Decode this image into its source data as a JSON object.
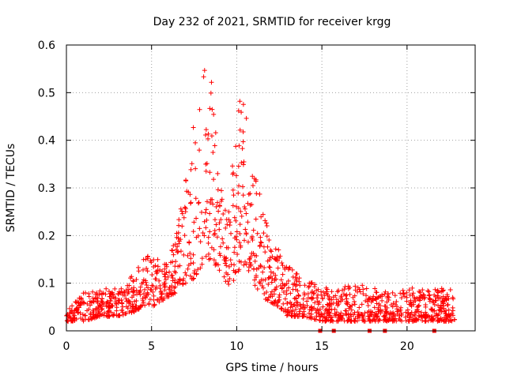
{
  "chart_data": {
    "type": "scatter",
    "title": "Day 232 of 2021, SRMTID for receiver krgg",
    "xlabel": "GPS time / hours",
    "ylabel": "SRMTID / TECUs",
    "xlim": [
      0,
      24
    ],
    "ylim": [
      0,
      0.6
    ],
    "xticks": [
      0,
      5,
      10,
      15,
      20
    ],
    "xtick_labels": [
      "0",
      "5",
      "10",
      "15",
      "20"
    ],
    "yticks": [
      0,
      0.1,
      0.2,
      0.3,
      0.4,
      0.5,
      0.6
    ],
    "ytick_labels": [
      "0",
      "0.1",
      "0.2",
      "0.3",
      "0.4",
      "0.5",
      "0.6"
    ],
    "grid": true,
    "marker": "plus",
    "series_color": "#ff0000",
    "envelope": {
      "description": "approximate upper envelope of the scatter cloud (hours, TECU)",
      "hours": [
        0,
        1,
        2,
        3,
        4,
        4.5,
        5,
        5.5,
        6,
        6.5,
        7,
        7.5,
        8,
        8.5,
        9,
        9.5,
        10,
        10.5,
        11,
        11.5,
        12,
        12.5,
        13,
        14,
        15,
        16,
        17,
        18,
        19,
        20,
        21,
        22,
        22.8
      ],
      "upper": [
        0.06,
        0.08,
        0.09,
        0.09,
        0.12,
        0.15,
        0.17,
        0.15,
        0.14,
        0.22,
        0.33,
        0.45,
        0.56,
        0.55,
        0.33,
        0.25,
        0.48,
        0.49,
        0.36,
        0.26,
        0.19,
        0.17,
        0.14,
        0.11,
        0.09,
        0.09,
        0.1,
        0.09,
        0.08,
        0.09,
        0.09,
        0.09,
        0.09
      ],
      "lower": [
        0.02,
        0.02,
        0.03,
        0.03,
        0.04,
        0.05,
        0.05,
        0.06,
        0.07,
        0.08,
        0.1,
        0.11,
        0.14,
        0.15,
        0.12,
        0.08,
        0.12,
        0.14,
        0.1,
        0.07,
        0.06,
        0.05,
        0.03,
        0.03,
        0.02,
        0.02,
        0.02,
        0.02,
        0.02,
        0.02,
        0.02,
        0.02,
        0.02
      ]
    },
    "zero_markers_hours": [
      14.9,
      15.7,
      17.8,
      18.7,
      21.6
    ]
  }
}
